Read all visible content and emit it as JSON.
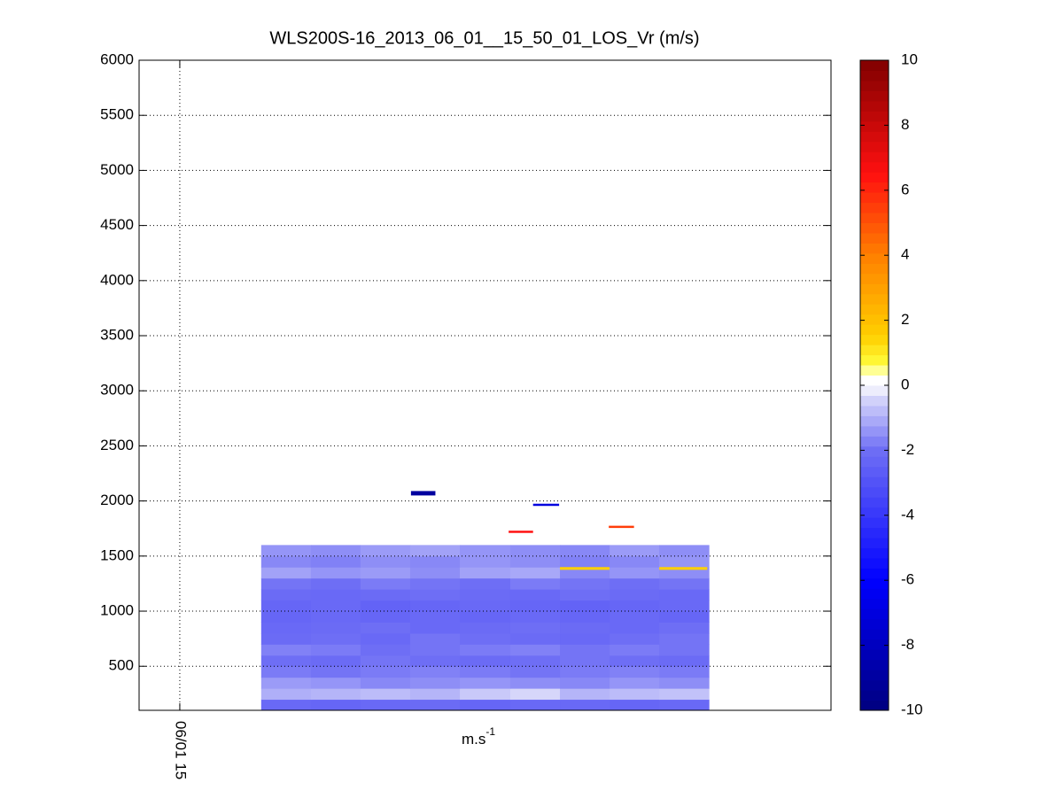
{
  "chart_data": {
    "type": "heatmap",
    "title": "WLS200S-16_2013_06_01__15_50_01_LOS_Vr (m/s)",
    "xlabel": "m.s",
    "xlabel_sup": "-1",
    "xlim": [
      14.95,
      15.8
    ],
    "xticks": [
      {
        "value": 15,
        "label": "06/01 15"
      }
    ],
    "ylim": [
      100,
      6000
    ],
    "yticks": [
      500,
      1000,
      1500,
      2000,
      2500,
      3000,
      3500,
      4000,
      4500,
      5000,
      5500,
      6000
    ],
    "grid": true,
    "x_edges": [
      15.1,
      15.161,
      15.222,
      15.283,
      15.344,
      15.406,
      15.467,
      15.528,
      15.589,
      15.65
    ],
    "y_edges": [
      100,
      200,
      300,
      400,
      500,
      600,
      700,
      800,
      900,
      1000,
      1100,
      1200,
      1300,
      1400,
      1500,
      1600
    ],
    "values": [
      [
        -2.2,
        -2.3,
        -2.2,
        -2.1,
        -2.3,
        -2.2,
        -2.2,
        -2.3,
        -2.2
      ],
      [
        -1.0,
        -0.9,
        -0.8,
        -0.9,
        -0.6,
        -0.4,
        -0.9,
        -0.8,
        -0.7
      ],
      [
        -1.3,
        -1.4,
        -1.6,
        -1.5,
        -1.4,
        -1.5,
        -1.6,
        -1.4,
        -1.5
      ],
      [
        -1.8,
        -1.9,
        -1.8,
        -1.7,
        -1.8,
        -1.9,
        -1.8,
        -1.7,
        -1.8
      ],
      [
        -2.0,
        -2.1,
        -1.9,
        -2.0,
        -2.1,
        -2.0,
        -1.9,
        -2.0,
        -2.1
      ],
      [
        -1.7,
        -1.8,
        -2.0,
        -1.9,
        -1.8,
        -1.7,
        -1.9,
        -1.8,
        -1.9
      ],
      [
        -2.1,
        -2.0,
        -2.2,
        -1.9,
        -2.0,
        -2.1,
        -2.2,
        -2.0,
        -1.9
      ],
      [
        -2.2,
        -2.1,
        -2.0,
        -2.2,
        -2.1,
        -2.0,
        -2.1,
        -2.2,
        -2.0
      ],
      [
        -2.3,
        -2.2,
        -2.3,
        -2.2,
        -2.3,
        -2.2,
        -2.3,
        -2.2,
        -2.3
      ],
      [
        -2.3,
        -2.2,
        -2.4,
        -2.3,
        -2.2,
        -2.3,
        -2.4,
        -2.3,
        -2.2
      ],
      [
        -2.1,
        -2.2,
        -2.1,
        -2.0,
        -2.1,
        -2.2,
        -2.0,
        -2.1,
        -2.2
      ],
      [
        -1.9,
        -2.0,
        -1.8,
        -1.9,
        -2.0,
        -1.8,
        -1.9,
        -2.0,
        -1.9
      ],
      [
        -1.2,
        -1.4,
        -1.3,
        -1.5,
        -1.2,
        -1.1,
        -1.6,
        -1.4,
        -1.5
      ],
      [
        -1.6,
        -1.7,
        -1.5,
        -1.6,
        -1.4,
        -1.5,
        -1.7,
        -1.6,
        -1.4
      ],
      [
        -1.4,
        -1.5,
        -1.3,
        -1.2,
        -1.4,
        -1.5,
        -1.6,
        -1.3,
        -1.5
      ]
    ],
    "segments": [
      {
        "x": [
          15.284,
          15.314
        ],
        "y": [
          2050,
          2090
        ],
        "value": -9
      },
      {
        "x": [
          15.434,
          15.466
        ],
        "y": [
          1955,
          1975
        ],
        "value": -7
      },
      {
        "x": [
          15.404,
          15.434
        ],
        "y": [
          1710,
          1730
        ],
        "value": 6.5
      },
      {
        "x": [
          15.527,
          15.558
        ],
        "y": [
          1755,
          1775
        ],
        "value": 5.5
      },
      {
        "x": [
          15.467,
          15.528
        ],
        "y": [
          1375,
          1400
        ],
        "value": 1.5
      },
      {
        "x": [
          15.589,
          15.648
        ],
        "y": [
          1375,
          1400
        ],
        "value": 1.5
      }
    ],
    "clim": [
      -10,
      10
    ],
    "colorbar_ticks": [
      -10,
      -8,
      -6,
      -4,
      -2,
      0,
      2,
      4,
      6,
      8,
      10
    ],
    "colormap": [
      {
        "value": -10,
        "color": "#00007f"
      },
      {
        "value": -6,
        "color": "#0000ff"
      },
      {
        "value": -2,
        "color": "#6e6ef5"
      },
      {
        "value": -0.3,
        "color": "#dcdcfa"
      },
      {
        "value": 0,
        "color": "#ffffff"
      },
      {
        "value": 0.3,
        "color": "#ffffff"
      },
      {
        "value": 0.6,
        "color": "#ffff40"
      },
      {
        "value": 1.5,
        "color": "#ffd000"
      },
      {
        "value": 4,
        "color": "#ff8000"
      },
      {
        "value": 6.5,
        "color": "#ff1010"
      },
      {
        "value": 10,
        "color": "#800000"
      }
    ]
  }
}
